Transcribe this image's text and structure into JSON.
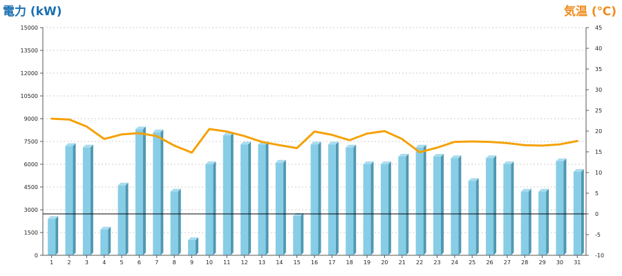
{
  "chart_data": {
    "type": "bar",
    "left_axis_title": "電力 (kW)",
    "right_axis_title": "気温 (℃)",
    "categories": [
      "1",
      "2",
      "3",
      "4",
      "5",
      "6",
      "7",
      "8",
      "9",
      "10",
      "11",
      "12",
      "13",
      "14",
      "15",
      "16",
      "17",
      "18",
      "19",
      "20",
      "21",
      "22",
      "23",
      "24",
      "25",
      "26",
      "27",
      "28",
      "29",
      "30",
      "31"
    ],
    "series": [
      {
        "type": "bar",
        "axis": "left",
        "values": [
          2400,
          7200,
          7100,
          1700,
          4600,
          8300,
          8100,
          4200,
          1000,
          6000,
          7900,
          7300,
          7300,
          6100,
          2600,
          7300,
          7300,
          7100,
          6000,
          6000,
          6500,
          7100,
          6500,
          6400,
          4900,
          6400,
          6000,
          4200,
          4200,
          6200,
          5500
        ]
      },
      {
        "type": "line",
        "axis": "right",
        "values": [
          23,
          22.8,
          21.1,
          18.1,
          19.2,
          19.5,
          18.8,
          16.5,
          14.8,
          20.5,
          19.9,
          18.8,
          17.4,
          16.6,
          15.9,
          19.9,
          19.1,
          17.8,
          19.4,
          20,
          18.1,
          14.9,
          16,
          17.4,
          17.5,
          17.4,
          17.1,
          16.6,
          16.5,
          16.8,
          17.6
        ]
      }
    ],
    "y_left": {
      "min": 0,
      "max": 15000,
      "ticks": [
        "0",
        "1500",
        "3000",
        "4500",
        "6000",
        "7500",
        "9000",
        "10500",
        "12000",
        "13500",
        "15000"
      ]
    },
    "y_right": {
      "min": -10,
      "max": 45,
      "ticks": [
        "-10",
        "-5",
        "0",
        "5",
        "10",
        "15",
        "20",
        "25",
        "30",
        "35",
        "40",
        "45"
      ]
    },
    "baseline_right_value": 0,
    "grid": true,
    "colors": {
      "bar_front": "#87cde6",
      "bar_side": "#4f98b2",
      "bar_top": "#a9dcef",
      "line": "#f5a106",
      "left_title": "#1a6fb0",
      "right_title": "#f08a1c",
      "grid": "#bbbbbb"
    }
  }
}
